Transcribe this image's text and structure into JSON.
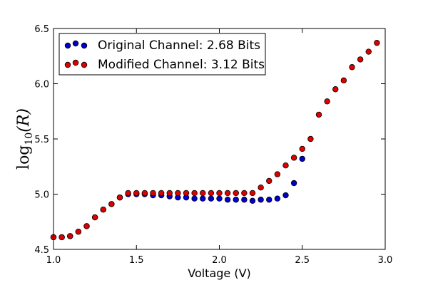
{
  "chart_data": {
    "type": "scatter",
    "title": "",
    "xlabel": "Voltage (V)",
    "ylabel": "log10(R)",
    "ylabel_parts": {
      "base": "log",
      "sub": "10",
      "arg": "(R)"
    },
    "xlim": [
      1.0,
      3.0
    ],
    "ylim": [
      4.5,
      6.5
    ],
    "xticks": [
      "1.0",
      "1.5",
      "2.0",
      "2.5",
      "3.0"
    ],
    "yticks": [
      "4.5",
      "5.0",
      "5.5",
      "6.0",
      "6.5"
    ],
    "grid": false,
    "legend_position": "top-left",
    "series": [
      {
        "name": "Original Channel: 2.68 Bits",
        "color": "#0000cc",
        "points": [
          [
            1.0,
            4.61
          ],
          [
            1.05,
            4.61
          ],
          [
            1.1,
            4.62
          ],
          [
            1.15,
            4.66
          ],
          [
            1.2,
            4.71
          ],
          [
            1.25,
            4.79
          ],
          [
            1.3,
            4.86
          ],
          [
            1.35,
            4.91
          ],
          [
            1.4,
            4.97
          ],
          [
            1.45,
            5.0
          ],
          [
            1.5,
            5.0
          ],
          [
            1.55,
            5.0
          ],
          [
            1.6,
            4.99
          ],
          [
            1.65,
            4.99
          ],
          [
            1.7,
            4.98
          ],
          [
            1.75,
            4.97
          ],
          [
            1.8,
            4.97
          ],
          [
            1.85,
            4.96
          ],
          [
            1.9,
            4.96
          ],
          [
            1.95,
            4.96
          ],
          [
            2.0,
            4.96
          ],
          [
            2.05,
            4.95
          ],
          [
            2.1,
            4.95
          ],
          [
            2.15,
            4.95
          ],
          [
            2.2,
            4.94
          ],
          [
            2.25,
            4.95
          ],
          [
            2.3,
            4.95
          ],
          [
            2.35,
            4.96
          ],
          [
            2.4,
            4.99
          ],
          [
            2.45,
            5.1
          ],
          [
            2.5,
            5.32
          ]
        ]
      },
      {
        "name": "Modified Channel: 3.12 Bits",
        "color": "#dd0000",
        "points": [
          [
            1.0,
            4.61
          ],
          [
            1.05,
            4.61
          ],
          [
            1.1,
            4.62
          ],
          [
            1.15,
            4.66
          ],
          [
            1.2,
            4.71
          ],
          [
            1.25,
            4.79
          ],
          [
            1.3,
            4.86
          ],
          [
            1.35,
            4.91
          ],
          [
            1.4,
            4.97
          ],
          [
            1.45,
            5.01
          ],
          [
            1.5,
            5.01
          ],
          [
            1.55,
            5.01
          ],
          [
            1.6,
            5.01
          ],
          [
            1.65,
            5.01
          ],
          [
            1.7,
            5.01
          ],
          [
            1.75,
            5.01
          ],
          [
            1.8,
            5.01
          ],
          [
            1.85,
            5.01
          ],
          [
            1.9,
            5.01
          ],
          [
            1.95,
            5.01
          ],
          [
            2.0,
            5.01
          ],
          [
            2.05,
            5.01
          ],
          [
            2.1,
            5.01
          ],
          [
            2.15,
            5.01
          ],
          [
            2.2,
            5.01
          ],
          [
            2.25,
            5.06
          ],
          [
            2.3,
            5.12
          ],
          [
            2.35,
            5.18
          ],
          [
            2.4,
            5.26
          ],
          [
            2.45,
            5.33
          ],
          [
            2.5,
            5.41
          ],
          [
            2.55,
            5.5
          ],
          [
            2.6,
            5.72
          ],
          [
            2.65,
            5.84
          ],
          [
            2.7,
            5.95
          ],
          [
            2.75,
            6.03
          ],
          [
            2.8,
            6.15
          ],
          [
            2.85,
            6.22
          ],
          [
            2.9,
            6.29
          ],
          [
            2.95,
            6.37
          ]
        ]
      }
    ]
  }
}
